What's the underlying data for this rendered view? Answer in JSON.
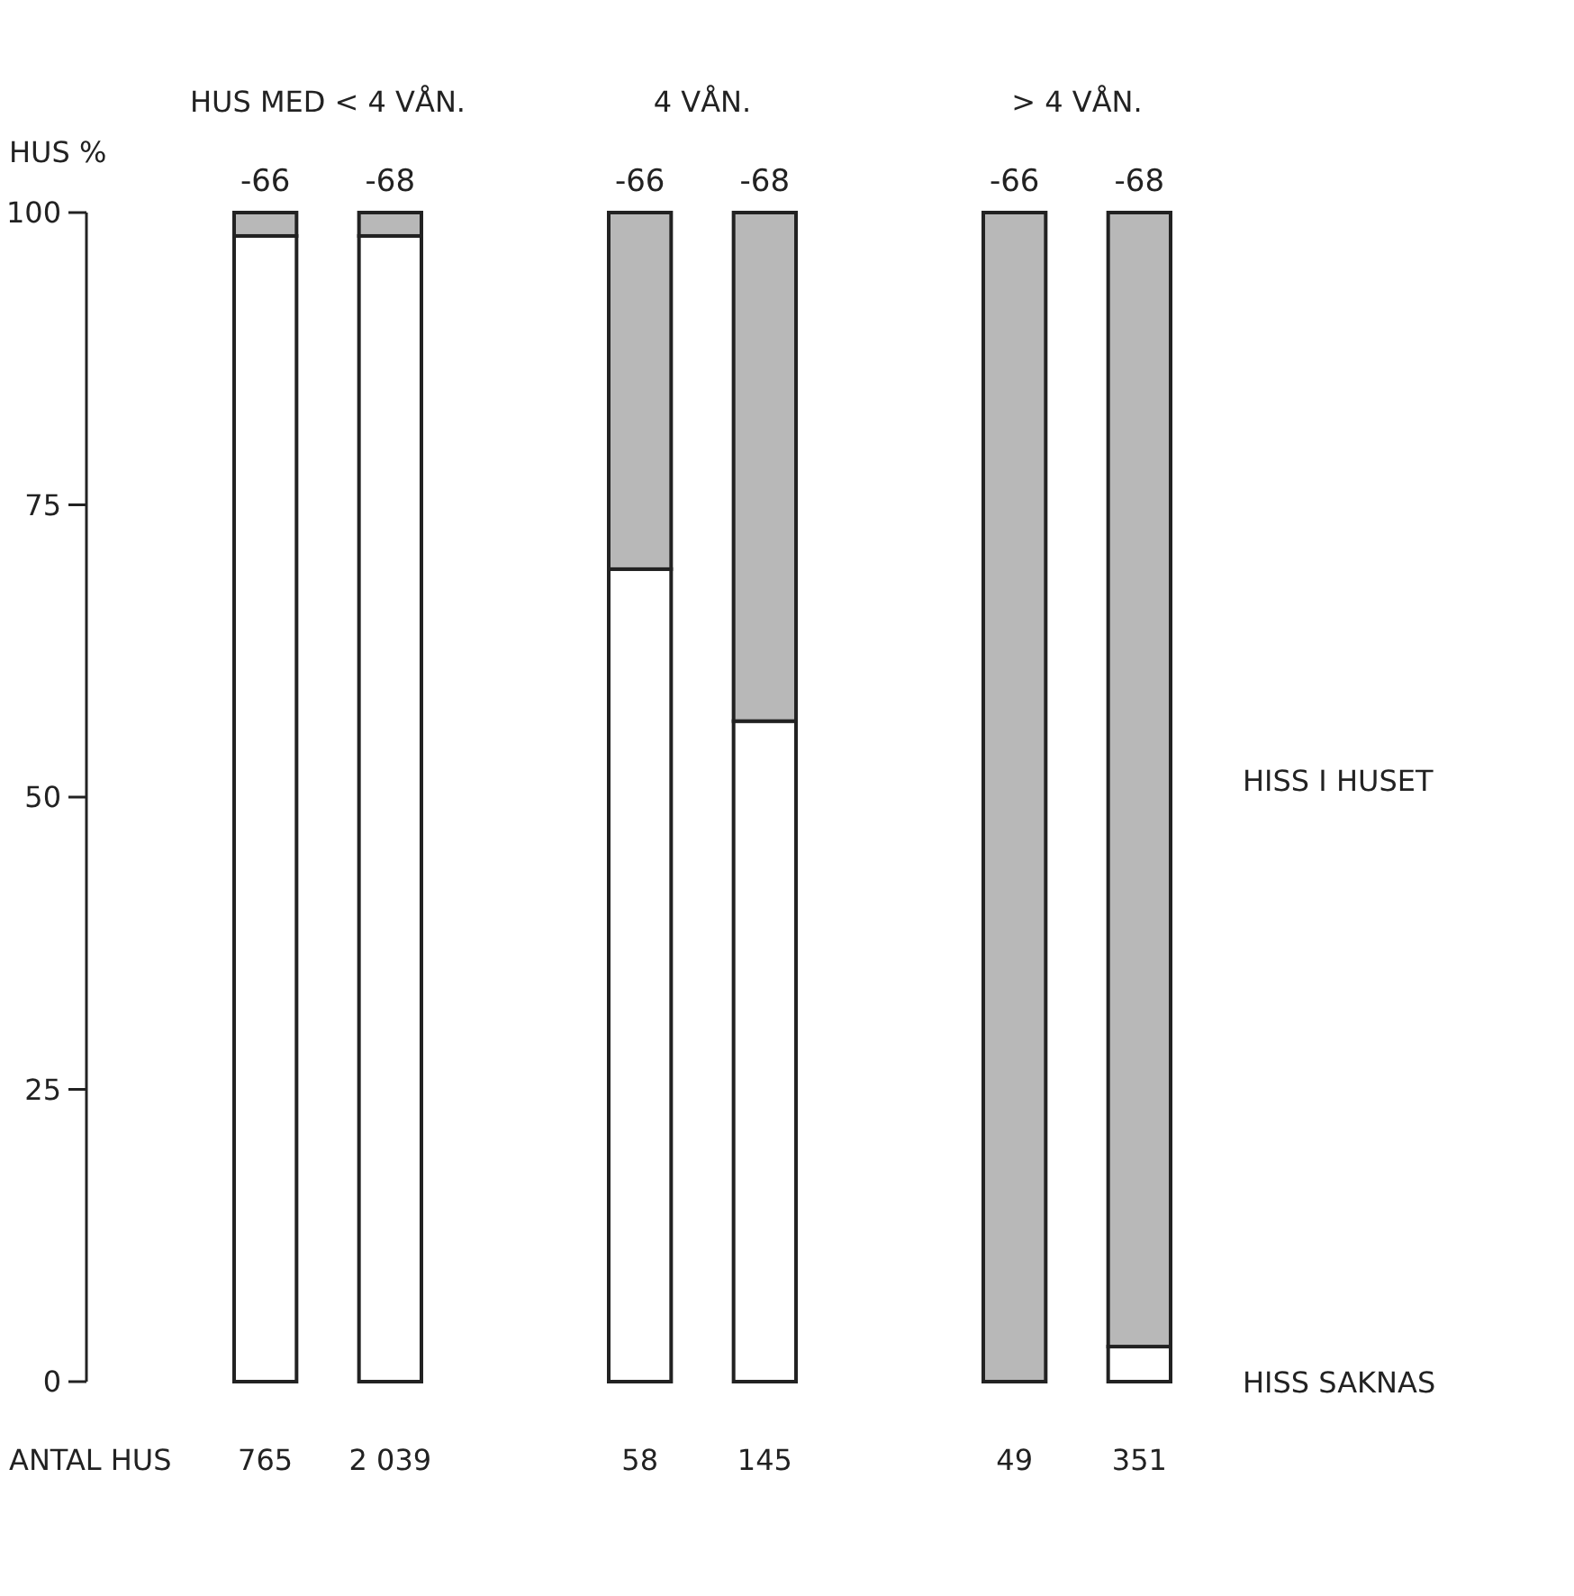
{
  "chart_data": {
    "type": "bar",
    "stacked": true,
    "ylabel": "HUS %",
    "categories": [
      "-66",
      "-68",
      null,
      "-66",
      "-68",
      null,
      "-66",
      "-68"
    ],
    "series": [
      {
        "name": "HISS SAKNAS",
        "color": "#ffffff",
        "values": [
          98,
          98,
          null,
          69.5,
          56.5,
          null,
          0,
          3
        ]
      },
      {
        "name": "HISS I HUSET",
        "color": "#b8b8b8",
        "values": [
          2,
          2,
          null,
          30.5,
          43.5,
          null,
          100,
          97
        ]
      }
    ],
    "ylim": [
      0,
      100
    ],
    "yticks": [
      0,
      25,
      50,
      75,
      100
    ],
    "grid": false,
    "annotations": [
      "HUS MED < 4 VÅN.",
      "4 VÅN.",
      "> 4 VÅN.",
      "ANTAL HUS",
      "765",
      "2 039",
      "58",
      "145",
      "49",
      "351"
    ]
  }
}
